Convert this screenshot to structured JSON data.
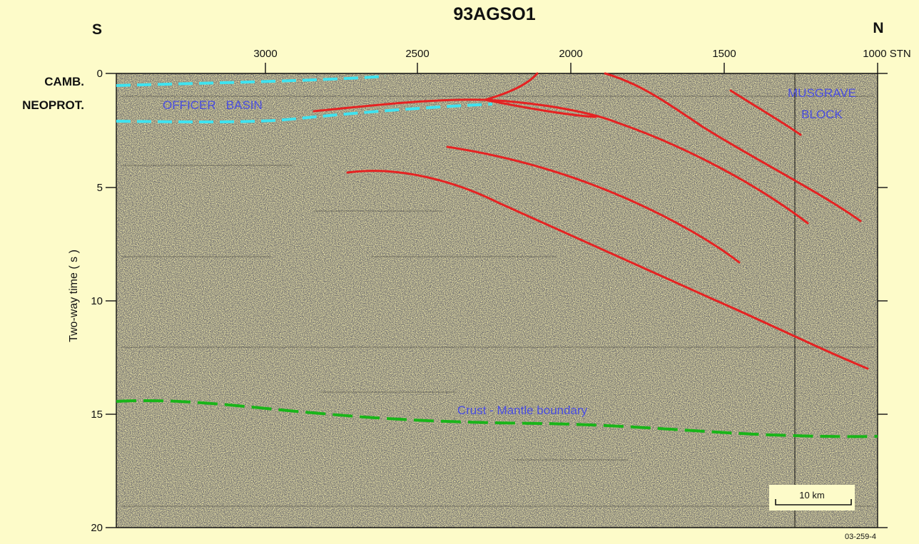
{
  "title": "93AGSO1",
  "direction_left": "S",
  "direction_right": "N",
  "x_axis": {
    "ticks": [
      "3000",
      "2500",
      "2000",
      "1500",
      "1000 STN"
    ]
  },
  "y_axis": {
    "label": "Two-way time ( s )",
    "ticks": [
      "0",
      "5",
      "10",
      "15",
      "20"
    ]
  },
  "unit_labels": {
    "camb": "CAMB.",
    "neoprot": "NEOPROT."
  },
  "annotations": {
    "officer_basin": "OFFICER   BASIN",
    "musgrave_line1": "MUSGRAVE",
    "musgrave_line2": "BLOCK",
    "moho": "Crust - Mantle boundary"
  },
  "scale_bar": {
    "label": "10 km"
  },
  "figure_id": "03-259-4",
  "colors": {
    "background": "#fdfbc9",
    "section_fill": "#e9e2a6",
    "fault_lines": "#e52222",
    "basin_boundaries": "#3fe3f0",
    "moho_line": "#19b519",
    "annotation_text": "#4a4ee0"
  }
}
